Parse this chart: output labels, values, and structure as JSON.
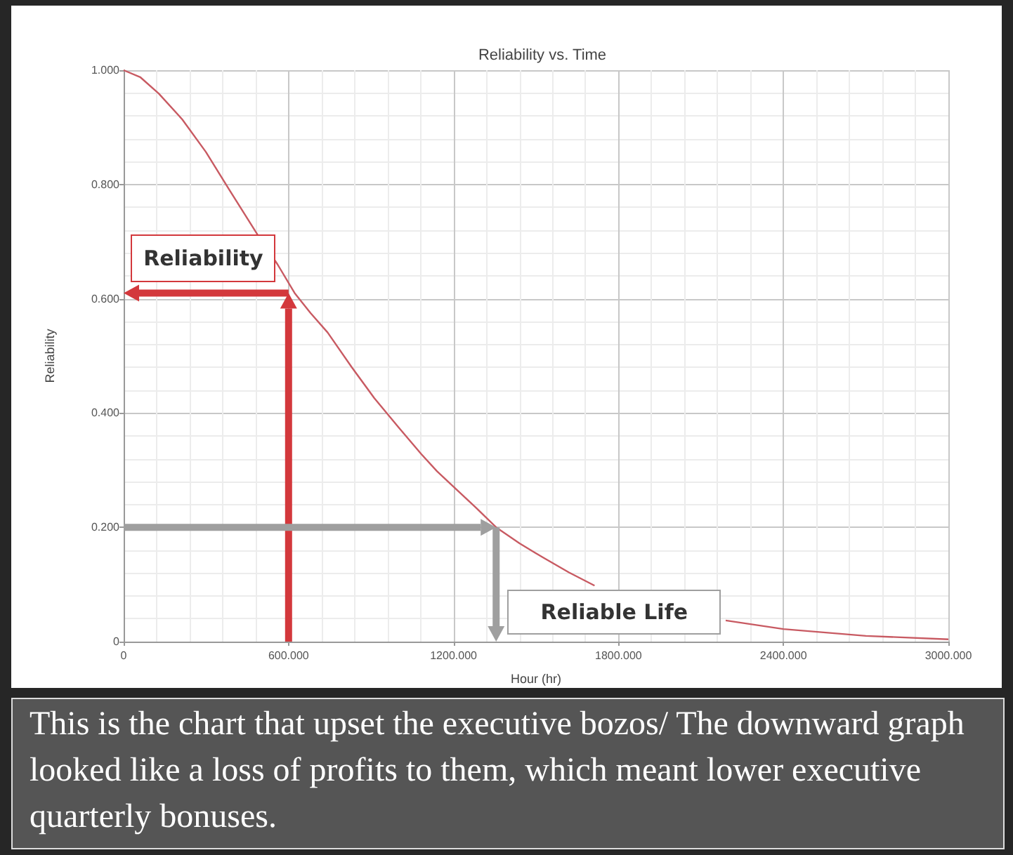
{
  "chart_data": {
    "type": "line",
    "title": "Reliability vs. Time",
    "xlabel": "Hour (hr)",
    "ylabel": "Reliability",
    "x": [
      0,
      60,
      128,
      213,
      299,
      384,
      486,
      560,
      622,
      680,
      742,
      830,
      912,
      1000,
      1083,
      1140,
      1202,
      1280,
      1355,
      1440,
      1526,
      1620,
      1713,
      1850,
      2000,
      2190,
      2400,
      2700,
      3000
    ],
    "series": [
      {
        "color": "#c85a62",
        "values": [
          1,
          0.988,
          0.959,
          0.914,
          0.857,
          0.791,
          0.713,
          0.66,
          0.61,
          0.575,
          0.541,
          0.48,
          0.426,
          0.375,
          0.328,
          0.298,
          0.27,
          0.235,
          0.2,
          0.172,
          0.147,
          0.121,
          0.098,
          null,
          null,
          0.037,
          0.022,
          0.01,
          0.004
        ]
      }
    ],
    "xlim": [
      0,
      3000
    ],
    "xticks": [
      0,
      {
        "value": 600,
        "label": "600.000"
      },
      {
        "value": 1200,
        "label": "1200.000"
      },
      {
        "value": 1800,
        "label": "1800.000"
      },
      {
        "value": 2400,
        "label": "2400.000"
      },
      {
        "value": 3000,
        "label": "3000.000"
      }
    ],
    "ylim": [
      0,
      1
    ],
    "yticks": [
      0,
      {
        "value": 0.2,
        "label": "0.200"
      },
      {
        "value": 0.4,
        "label": "0.400"
      },
      {
        "value": 0.6,
        "label": "0.600"
      },
      {
        "value": 0.8,
        "label": "0.800"
      },
      {
        "value": 1,
        "label": "1.000"
      }
    ],
    "grid": true,
    "marker": "none",
    "ref_lines": [
      {
        "axis": "x",
        "value": 1355,
        "label": "Reliable Life",
        "color": "#9f9f9f"
      }
    ],
    "annotations": [
      {
        "text": "Reliability",
        "x": 600,
        "y": 0.61
      },
      "This is the chart that upset the executive bozos/ The downward graph looked like a loss of profits to them, which meant lower executive quarterly bonuses."
    ]
  }
}
